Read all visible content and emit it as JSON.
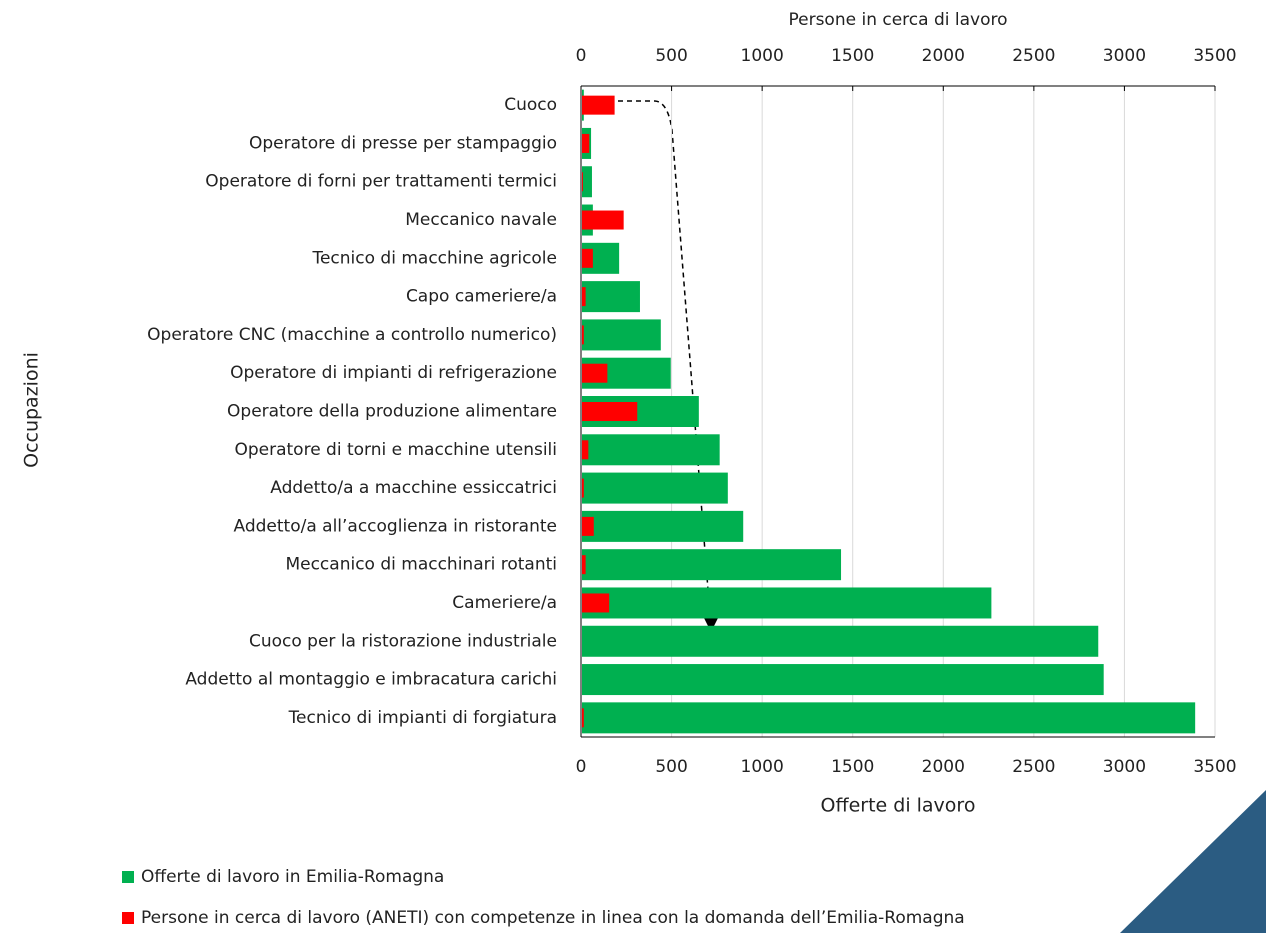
{
  "chart_data": {
    "type": "bar",
    "orientation": "horizontal",
    "xlabel": "Offerte di lavoro",
    "x2label": "Persone in cerca di lavoro",
    "ylabel": "Occupazioni",
    "categories": [
      "Cuoco",
      "Operatore di presse per stampaggio",
      "Operatore di forni per trattamenti termici",
      "Meccanico navale",
      "Tecnico di macchine agricole",
      "Capo cameriere/a",
      "Operatore CNC (macchine a controllo numerico)",
      "Operatore di impianti di refrigerazione",
      "Operatore della produzione alimentare",
      "Operatore di torni e macchine utensili",
      "Addetto/a a macchine essiccatrici",
      "Addetto/a all’accoglienza in ristorante",
      "Meccanico di macchinari rotanti",
      "Cameriere/a",
      "Cuoco per la ristorazione industriale",
      "Addetto al montaggio e imbracatura carichi",
      "Tecnico di impianti di forgiatura"
    ],
    "series": [
      {
        "name": "Offerte di lavoro in Emilia-Romagna",
        "color": "#00b050",
        "values": [
          10,
          50,
          55,
          60,
          205,
          320,
          435,
          490,
          645,
          760,
          805,
          890,
          1430,
          2260,
          2850,
          2880,
          3385
        ]
      },
      {
        "name": "Persone in cerca di lavoro (ANETI) con competenze in linea con la domanda dell’Emilia-Romagna",
        "color": "#ff0000",
        "axis": "x2",
        "values": [
          180,
          40,
          5,
          230,
          60,
          20,
          10,
          140,
          305,
          35,
          10,
          65,
          20,
          150,
          0,
          0,
          10
        ]
      }
    ],
    "xlim": [
      0,
      3500
    ],
    "xticks": [
      0,
      500,
      1000,
      1500,
      2000,
      2500,
      3000,
      3500
    ],
    "x2lim": [
      0,
      3500
    ],
    "x2ticks": [
      0,
      500,
      1000,
      1500,
      2000,
      2500,
      3000,
      3500
    ],
    "grid": true
  }
}
